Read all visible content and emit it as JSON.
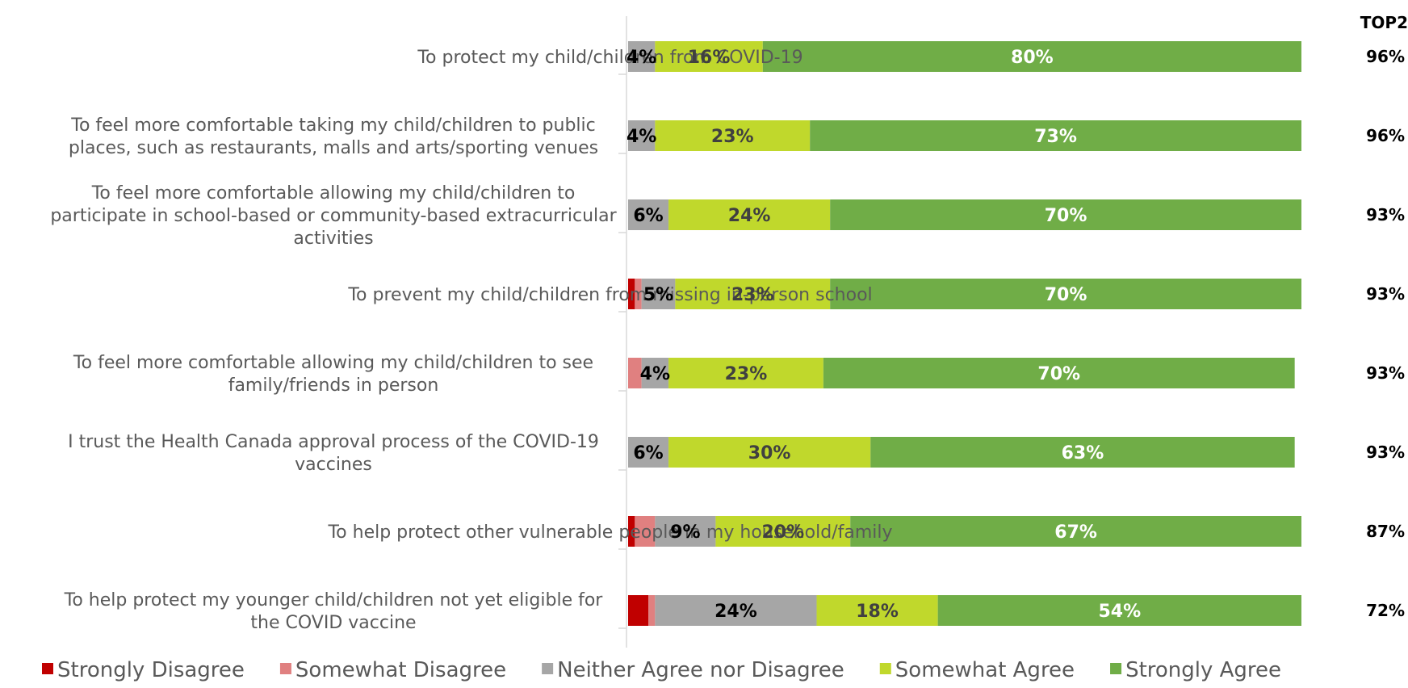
{
  "chart_data": {
    "type": "bar",
    "orientation": "horizontal",
    "stacked": true,
    "top2_header": "TOP2",
    "categories": [
      [
        "To protect my child/children from COVID-19"
      ],
      [
        "To feel more comfortable taking my child/children to public",
        "places, such as restaurants, malls and arts/sporting venues"
      ],
      [
        "To feel more comfortable allowing my child/children to",
        "participate in school-based or community-based extracurricular",
        "activities"
      ],
      [
        "To prevent my child/children from missing in-person school"
      ],
      [
        "To feel more comfortable allowing my child/children to see",
        "family/friends in person"
      ],
      [
        "I trust the Health Canada approval process of the COVID-19",
        "vaccines"
      ],
      [
        "To help protect other vulnerable people in my household/family"
      ],
      [
        "To help protect my younger child/children not yet eligible for",
        "the COVID vaccine"
      ]
    ],
    "series": [
      {
        "name": "Strongly Disagree",
        "color": "#C00000",
        "values": [
          0,
          0,
          0,
          1,
          0,
          0,
          1,
          3
        ],
        "labels": [
          "",
          "",
          "",
          "",
          "",
          "",
          "",
          ""
        ]
      },
      {
        "name": "Somewhat Disagree",
        "color": "#E08080",
        "values": [
          0,
          0,
          0,
          1,
          2,
          0,
          3,
          1
        ],
        "labels": [
          "",
          "",
          "",
          "",
          "",
          "",
          "",
          ""
        ]
      },
      {
        "name": "Neither Agree nor Disagree",
        "color": "#A6A6A6",
        "values": [
          4,
          4,
          6,
          5,
          4,
          6,
          9,
          24
        ],
        "labels": [
          "4%",
          "4%",
          "6%",
          "5%",
          "4%",
          "6%",
          "9%",
          "24%"
        ]
      },
      {
        "name": "Somewhat Agree",
        "color": "#C0D82C",
        "values": [
          16,
          23,
          24,
          23,
          23,
          30,
          20,
          18
        ],
        "labels": [
          "16%",
          "23%",
          "24%",
          "23%",
          "23%",
          "30%",
          "20%",
          "18%"
        ]
      },
      {
        "name": "Strongly Agree",
        "color": "#70AD47",
        "values": [
          80,
          73,
          70,
          70,
          70,
          63,
          67,
          54
        ],
        "labels": [
          "80%",
          "73%",
          "70%",
          "70%",
          "70%",
          "63%",
          "67%",
          "54%"
        ]
      }
    ],
    "label_colors": [
      "#ffffff",
      "#ffffff",
      "#000000",
      "#404040",
      "#ffffff"
    ],
    "top2": [
      "96%",
      "96%",
      "93%",
      "93%",
      "93%",
      "93%",
      "87%",
      "72%"
    ],
    "xlim": [
      0,
      100
    ],
    "grid": false,
    "legend_position": "bottom"
  }
}
